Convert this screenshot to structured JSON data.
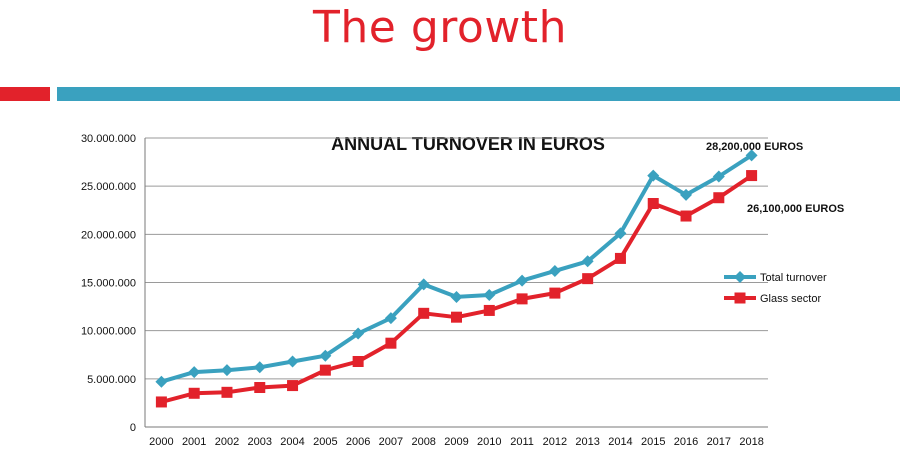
{
  "slide": {
    "title": "The growth"
  },
  "colors": {
    "accent_red": "#e2222b",
    "accent_blue": "#3aa1bf"
  },
  "chart_data": {
    "type": "line",
    "title": "ANNUAL TURNOVER IN EUROS",
    "xlabel": "",
    "ylabel": "",
    "categories": [
      "2000",
      "2001",
      "2002",
      "2003",
      "2004",
      "2005",
      "2006",
      "2007",
      "2008",
      "2009",
      "2010",
      "2011",
      "2012",
      "2013",
      "2014",
      "2015",
      "2016",
      "2017",
      "2018"
    ],
    "ylim": [
      0,
      30000000
    ],
    "yticks": [
      0,
      5000000,
      10000000,
      15000000,
      20000000,
      25000000,
      30000000
    ],
    "ytick_labels": [
      "0",
      "5.000.000",
      "10.000.000",
      "15.000.000",
      "20.000.000",
      "25.000.000",
      "30.000.000"
    ],
    "grid": true,
    "legend_position": "right",
    "series": [
      {
        "name": "Total turnover",
        "color": "#3aa1bf",
        "marker": "diamond",
        "values": [
          4700000,
          5700000,
          5900000,
          6200000,
          6800000,
          7400000,
          9700000,
          11300000,
          14800000,
          13500000,
          13700000,
          15200000,
          16200000,
          17200000,
          20100000,
          26100000,
          24100000,
          26000000,
          28200000
        ]
      },
      {
        "name": "Glass sector",
        "color": "#e2222b",
        "marker": "square",
        "values": [
          2600000,
          3500000,
          3600000,
          4100000,
          4300000,
          5900000,
          6800000,
          8700000,
          11800000,
          11400000,
          12100000,
          13300000,
          13900000,
          15400000,
          17500000,
          23200000,
          21900000,
          23800000,
          26100000
        ]
      }
    ],
    "annotations": [
      {
        "text": "28,200,000 EUROS",
        "series": "Total turnover",
        "category": "2018"
      },
      {
        "text": "26,100,000 EUROS",
        "series": "Glass sector",
        "category": "2018"
      }
    ]
  }
}
